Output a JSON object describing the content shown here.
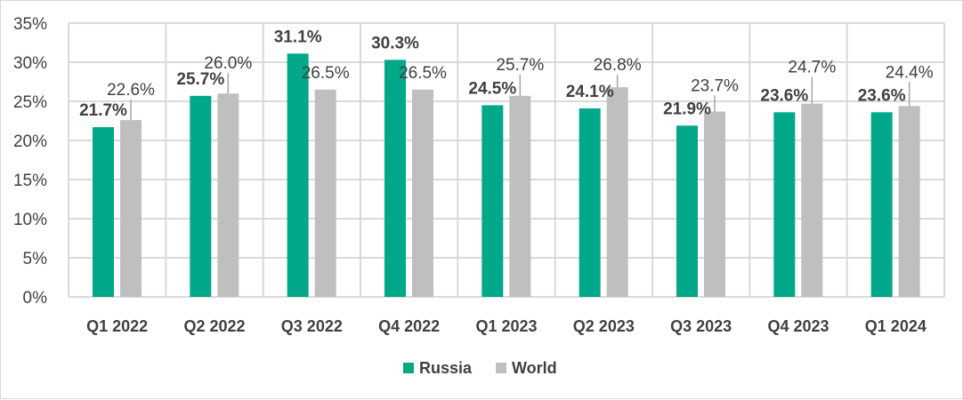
{
  "chart_data": {
    "type": "bar",
    "title": "",
    "xlabel": "",
    "ylabel": "",
    "categories": [
      "Q1 2022",
      "Q2 2022",
      "Q3 2022",
      "Q4 2022",
      "Q1 2023",
      "Q2 2023",
      "Q3 2023",
      "Q4 2023",
      "Q1 2024"
    ],
    "series": [
      {
        "name": "Russia",
        "color": "#00A88A",
        "values": [
          21.7,
          25.7,
          31.1,
          30.3,
          24.5,
          24.1,
          21.9,
          23.6,
          23.6
        ],
        "labels": [
          "21.7%",
          "25.7%",
          "31.1%",
          "30.3%",
          "24.5%",
          "24.1%",
          "21.9%",
          "23.6%",
          "23.6%"
        ]
      },
      {
        "name": "World",
        "color": "#BFBFBF",
        "values": [
          22.6,
          26.0,
          26.5,
          26.5,
          25.7,
          26.8,
          23.7,
          24.7,
          24.4
        ],
        "labels": [
          "22.6%",
          "26.0%",
          "26.5%",
          "26.5%",
          "25.7%",
          "26.8%",
          "23.7%",
          "24.7%",
          "24.4%"
        ]
      }
    ],
    "ylim": [
      0,
      35
    ],
    "yticks": [
      "0%",
      "5%",
      "10%",
      "15%",
      "20%",
      "25%",
      "30%",
      "35%"
    ],
    "grid": true,
    "legend": "bottom"
  }
}
